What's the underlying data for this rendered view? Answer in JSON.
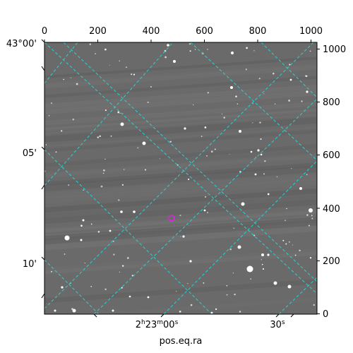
{
  "image": {
    "description_colors": {
      "sky": "#6b6b6b",
      "grid": "#29d3d3",
      "marker": "#e020e0"
    }
  },
  "axes": {
    "xlabel": "pos.eq.ra",
    "top_pixel_ticks": [
      "0",
      "200",
      "400",
      "600",
      "800",
      "1000"
    ],
    "right_pixel_ticks": [
      "1000",
      "800",
      "600",
      "400",
      "200",
      "0"
    ],
    "dec_ticks": [
      "43°00'",
      "05'",
      "10'"
    ],
    "ra_ticks": [
      {
        "main": "2",
        "sup1": "h",
        "mid": "23",
        "sup2": "m",
        "tail": "00",
        "sup3": "s"
      },
      {
        "main": "",
        "sup1": "",
        "mid": "",
        "sup2": "",
        "tail": "30",
        "sup3": "s"
      }
    ]
  }
}
